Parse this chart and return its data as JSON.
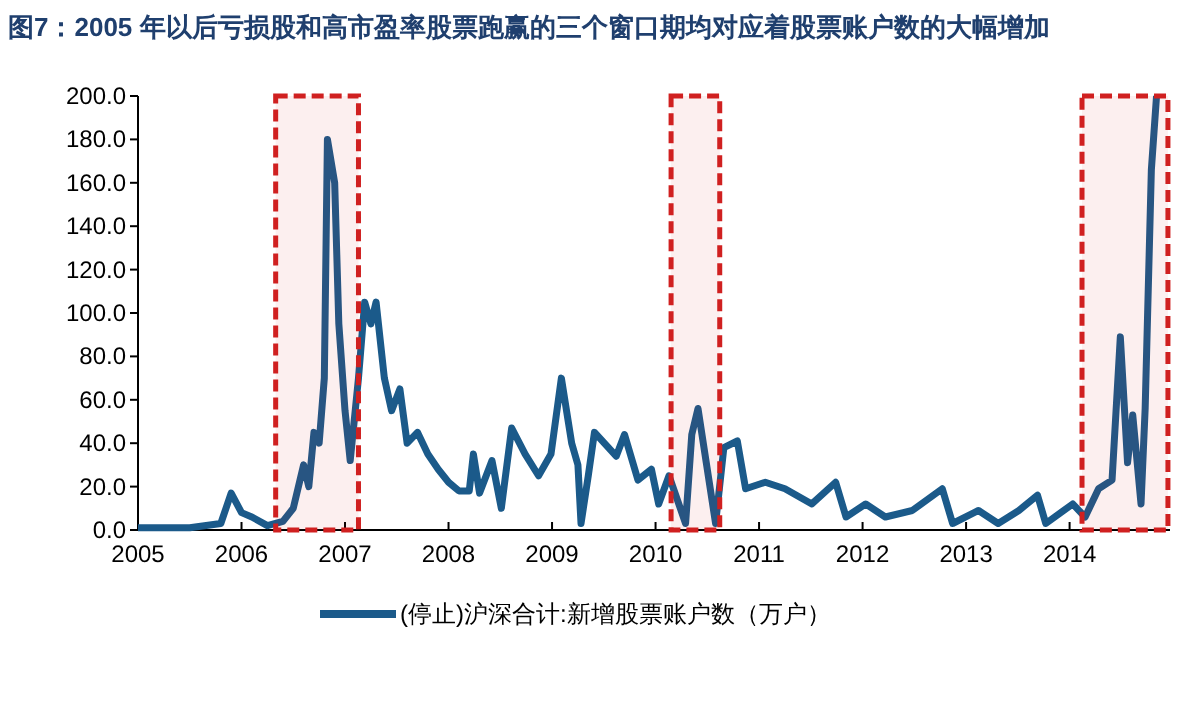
{
  "chart_data": {
    "type": "line",
    "title": "图7：2005 年以后亏损股和高市盈率股票跑赢的三个窗口期均对应着股票账户数的大幅增加",
    "x": [
      2005.0,
      2005.5,
      2005.8,
      2005.9,
      2006.0,
      2006.1,
      2006.25,
      2006.4,
      2006.5,
      2006.6,
      2006.65,
      2006.7,
      2006.75,
      2006.8,
      2006.83,
      2006.9,
      2006.94,
      2007.0,
      2007.05,
      2007.13,
      2007.19,
      2007.25,
      2007.3,
      2007.38,
      2007.45,
      2007.53,
      2007.6,
      2007.7,
      2007.8,
      2007.9,
      2008.0,
      2008.1,
      2008.2,
      2008.24,
      2008.3,
      2008.42,
      2008.51,
      2008.61,
      2008.74,
      2008.87,
      2008.99,
      2009.09,
      2009.19,
      2009.25,
      2009.28,
      2009.35,
      2009.41,
      2009.62,
      2009.7,
      2009.83,
      2009.96,
      2010.03,
      2010.13,
      2010.29,
      2010.35,
      2010.41,
      2010.49,
      2010.58,
      2010.66,
      2010.79,
      2010.87,
      2011.06,
      2011.25,
      2011.51,
      2011.74,
      2011.84,
      2012.03,
      2012.22,
      2012.48,
      2012.77,
      2012.87,
      2013.12,
      2013.31,
      2013.51,
      2013.69,
      2013.77,
      2014.03,
      2014.15,
      2014.28,
      2014.41,
      2014.49,
      2014.56,
      2014.61,
      2014.69,
      2014.73,
      2014.79,
      2014.84
    ],
    "series": [
      {
        "name": "(停止)沪深合计:新增股票账户数（万户）",
        "color": "#1b5a8a",
        "values": [
          1,
          1,
          3,
          17,
          8,
          6,
          2,
          4,
          10,
          30,
          20,
          45,
          40,
          70,
          180,
          160,
          95,
          55,
          32,
          70,
          105,
          95,
          105,
          70,
          55,
          65,
          40,
          45,
          35,
          28,
          22,
          18,
          18,
          35,
          17,
          32,
          10,
          47,
          35,
          25,
          35,
          70,
          40,
          30,
          3,
          25,
          45,
          34,
          44,
          23,
          28,
          12,
          25,
          3,
          44,
          56,
          31,
          3,
          38,
          41,
          19,
          22,
          19,
          12,
          22,
          6,
          12,
          6,
          9,
          19,
          3,
          9,
          3,
          9,
          16,
          3,
          12,
          6,
          19,
          23,
          89,
          31,
          53,
          12,
          56,
          166,
          200
        ]
      }
    ],
    "xlim": [
      2005,
      2014.97
    ],
    "xticks": [
      2005,
      2006,
      2007,
      2008,
      2009,
      2010,
      2011,
      2012,
      2013,
      2014
    ],
    "ylim": [
      0,
      200
    ],
    "yticks": [
      {
        "value": 0,
        "label": "0.0"
      },
      {
        "value": 20,
        "label": "20.0"
      },
      {
        "value": 40,
        "label": "40.0"
      },
      {
        "value": 60,
        "label": "60.0"
      },
      {
        "value": 80,
        "label": "80.0"
      },
      {
        "value": 100,
        "label": "100.0"
      },
      {
        "value": 120,
        "label": "120.0"
      },
      {
        "value": 140,
        "label": "140.0"
      },
      {
        "value": 160,
        "label": "160.0"
      },
      {
        "value": 180,
        "label": "180.0"
      },
      {
        "value": 200,
        "label": "200.0"
      }
    ],
    "bands": [
      {
        "axis": "x",
        "from": 2006.33,
        "to": 2007.13,
        "color": "#d02020"
      },
      {
        "axis": "x",
        "from": 2010.15,
        "to": 2010.62,
        "color": "#d02020"
      },
      {
        "axis": "x",
        "from": 2014.12,
        "to": 2014.95,
        "color": "#d02020"
      }
    ],
    "grid": false,
    "legend": "bottom",
    "marker": "none",
    "line_style": "solid"
  }
}
